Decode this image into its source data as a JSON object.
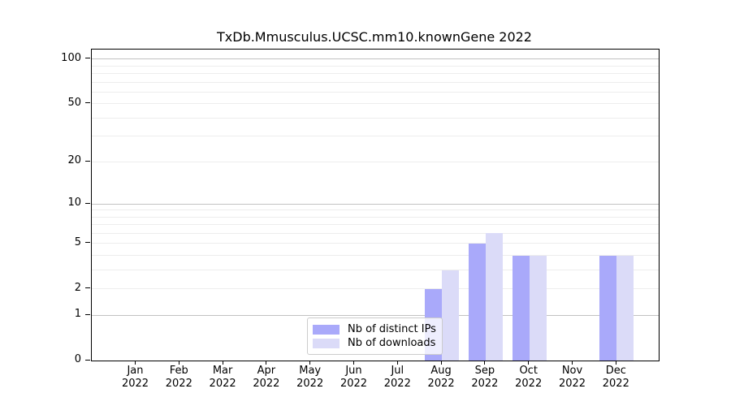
{
  "chart_data": {
    "type": "bar",
    "title": "TxDb.Mmusculus.UCSC.mm10.knownGene 2022",
    "categories": [
      "Jan",
      "Feb",
      "Mar",
      "Apr",
      "May",
      "Jun",
      "Jul",
      "Aug",
      "Sep",
      "Oct",
      "Nov",
      "Dec"
    ],
    "year_label": "2022",
    "series": [
      {
        "name": "Nb of distinct IPs",
        "color": "#a9a9fa",
        "values": [
          0,
          0,
          0,
          0,
          0,
          0,
          0,
          2,
          5,
          4,
          0,
          4
        ]
      },
      {
        "name": "Nb of downloads",
        "color": "#dbdbf8",
        "values": [
          0,
          0,
          0,
          0,
          0,
          0,
          0,
          3,
          6,
          4,
          0,
          4
        ]
      }
    ],
    "y_axis": {
      "scale": "log(1+x)",
      "ticks": [
        0,
        1,
        2,
        5,
        10,
        20,
        50,
        100
      ],
      "major_gridlines": [
        1,
        10,
        100
      ],
      "minor_gridlines": [
        2,
        3,
        4,
        5,
        6,
        7,
        8,
        9,
        20,
        30,
        40,
        50,
        60,
        70,
        80,
        90
      ],
      "max": 116
    },
    "legend_position": "lower center-left, overlapping Aug bars",
    "grid": "horizontal only",
    "colors": {
      "major_grid": "#c2c2c2",
      "minor_grid": "#ededed",
      "axis": "#000000",
      "background": "#ffffff"
    }
  }
}
